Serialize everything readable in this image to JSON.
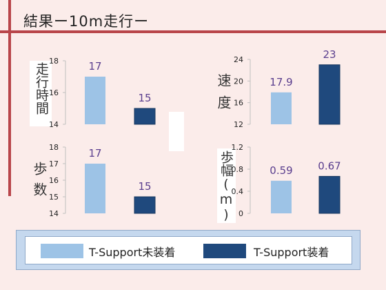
{
  "title": "結果ー10m走行ー",
  "colors": {
    "stripe": "#b8454a",
    "before": "#9dc3e6",
    "after": "#1f497d",
    "value_text": "#5a3e8e",
    "axis_line": "#bfbfbf"
  },
  "legend": {
    "before": "T-Support未装着",
    "after": "T-Support装着"
  },
  "chart_data": [
    {
      "type": "bar",
      "ylabel": "走行時間",
      "categories": [
        "T-Support未装着",
        "T-Support装着"
      ],
      "values": [
        17,
        15
      ],
      "labels": [
        "17",
        "15"
      ],
      "ylim": [
        14,
        18
      ],
      "yticks": [
        "14",
        "16",
        "18"
      ]
    },
    {
      "type": "bar",
      "ylabel": "速度",
      "categories": [
        "T-Support未装着",
        "T-Support装着"
      ],
      "values": [
        17.9,
        23
      ],
      "labels": [
        "17.9",
        "23"
      ],
      "ylim": [
        12,
        24
      ],
      "yticks": [
        "12",
        "16",
        "20",
        "24"
      ]
    },
    {
      "type": "bar",
      "ylabel": "歩数",
      "categories": [
        "T-Support未装着",
        "T-Support装着"
      ],
      "values": [
        17,
        15
      ],
      "labels": [
        "17",
        "15"
      ],
      "ylim": [
        14,
        18
      ],
      "yticks": [
        "14",
        "15",
        "16",
        "17",
        "18"
      ]
    },
    {
      "type": "bar",
      "ylabel": "歩幅(m)",
      "categories": [
        "T-Support未装着",
        "T-Support装着"
      ],
      "values": [
        0.59,
        0.67
      ],
      "labels": [
        "0.59",
        "0.67"
      ],
      "ylim": [
        0,
        1.2
      ],
      "yticks": [
        "0",
        "0.4",
        "0.8",
        "1.2"
      ]
    }
  ]
}
